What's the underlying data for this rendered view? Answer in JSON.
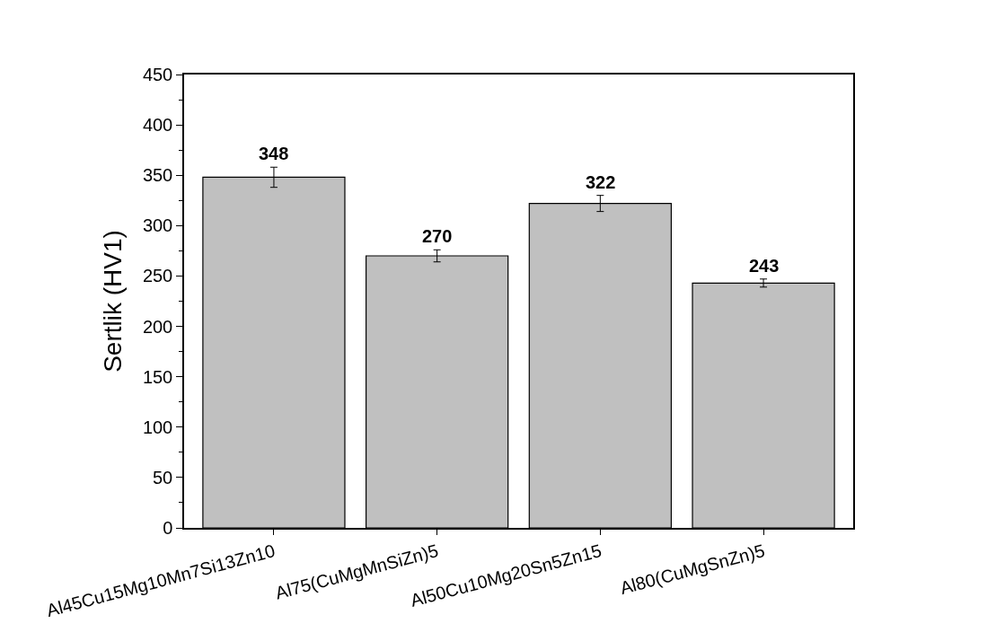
{
  "chart_data": {
    "type": "bar",
    "ylabel": "Sertlik (HV1)",
    "categories": [
      "Al45Cu15Mg10Mn7Si13Zn10",
      "Al75(CuMgMnSiZn)5",
      "Al50Cu10Mg20Sn5Zn15",
      "Al80(CuMgSnZn)5"
    ],
    "values": [
      348,
      270,
      322,
      243
    ],
    "errors": [
      10,
      6,
      8,
      4
    ],
    "color": "#c0c0c0",
    "data_labels": true,
    "ylim": [
      0,
      450
    ],
    "yticks": [
      0,
      50,
      100,
      150,
      200,
      250,
      300,
      350,
      400,
      450
    ]
  }
}
